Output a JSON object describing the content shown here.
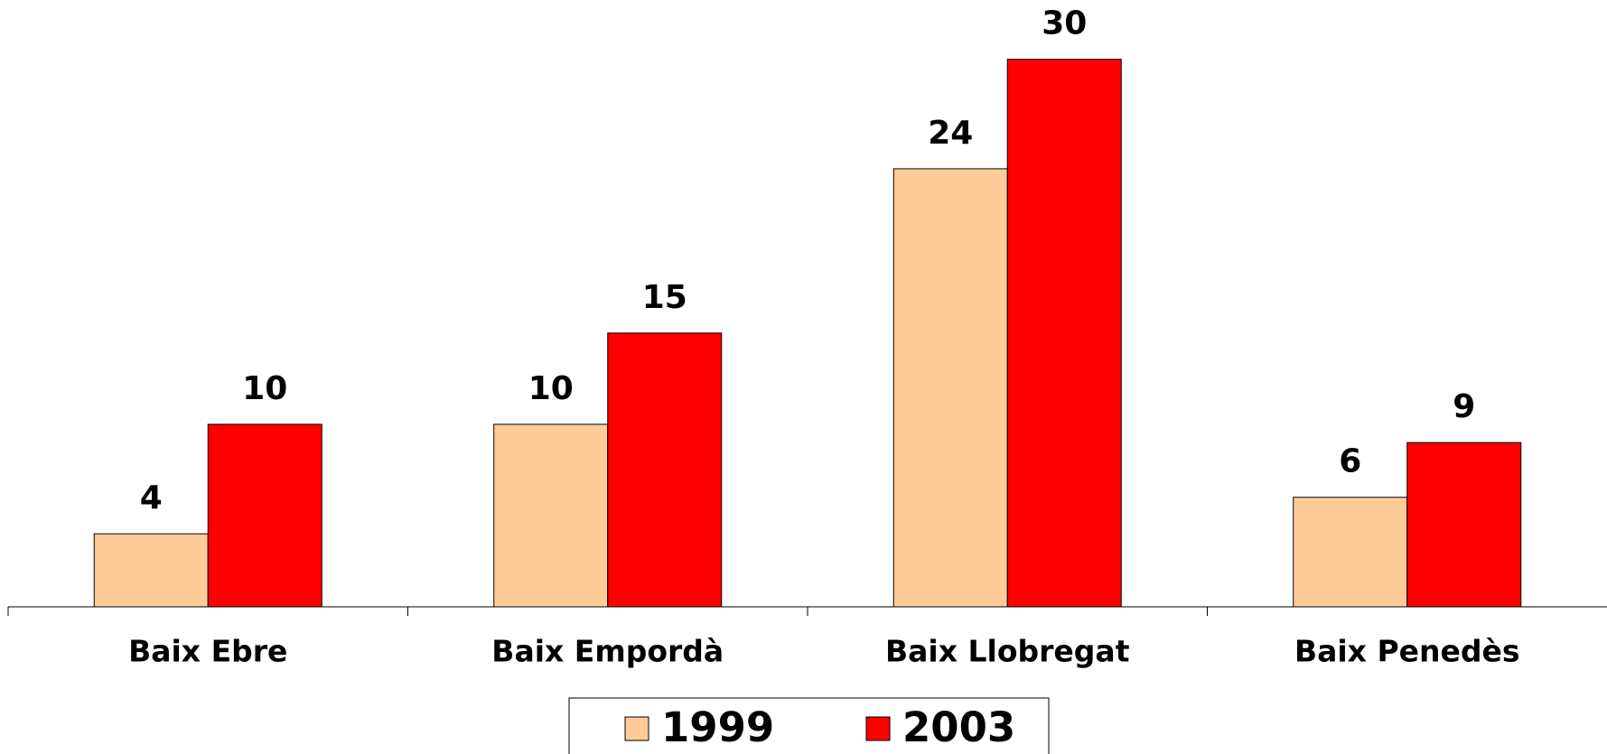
{
  "chart_data": {
    "type": "bar",
    "categories": [
      "Baix Ebre",
      "Baix Empordà",
      "Baix Llobregat",
      "Baix Penedès"
    ],
    "series": [
      {
        "name": "1999",
        "color": "#ffcc99",
        "values": [
          4,
          10,
          24,
          6
        ]
      },
      {
        "name": "2003",
        "color": "#ff0000",
        "values": [
          10,
          15,
          30,
          9
        ]
      }
    ],
    "ylim": [
      0,
      33
    ],
    "legend": "bottom"
  }
}
